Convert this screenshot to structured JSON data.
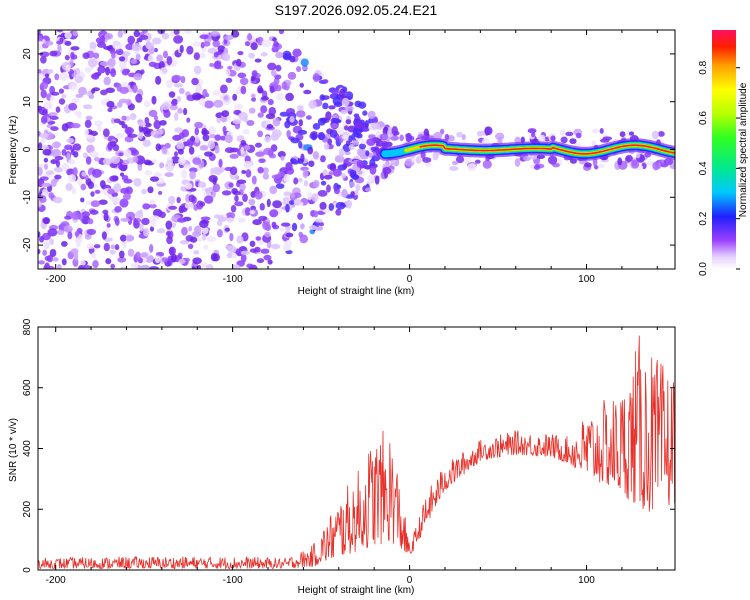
{
  "chart_data": [
    {
      "type": "heatmap",
      "title": "S197.2026.092.05.24.E21",
      "xlabel": "Height of straight line (km)",
      "ylabel": "Frequency (Hz)",
      "xlim": [
        -210,
        150
      ],
      "ylim": [
        -25,
        25
      ],
      "xticks": [
        -200,
        -100,
        0,
        100
      ],
      "yticks": [
        -20,
        -10,
        0,
        10,
        20
      ],
      "colorbar": {
        "label": "Normalized spectral amplitude",
        "range": [
          0,
          0.95
        ],
        "ticks": [
          0.0,
          0.2,
          0.4,
          0.6,
          0.8
        ]
      },
      "description_segments": [
        {
          "x_range": [
            -210,
            -70
          ],
          "character": "noise",
          "amplitude_max": 0.3
        },
        {
          "x_range": [
            -70,
            -10
          ],
          "character": "transition",
          "amplitude_max": 0.4
        },
        {
          "x_range": [
            -10,
            150
          ],
          "character": "coherent band near 0 Hz",
          "amplitude_max": 0.95
        }
      ]
    },
    {
      "type": "line",
      "xlabel": "Height of straight line (km)",
      "ylabel": "SNR (10 * v/v)",
      "xlim": [
        -210,
        150
      ],
      "ylim": [
        0,
        800
      ],
      "xticks": [
        -200,
        -100,
        0,
        100
      ],
      "yticks": [
        0,
        200,
        400,
        600,
        800
      ],
      "series": [
        {
          "name": "SNR",
          "color": "#e8302a",
          "envelope": {
            "x": [
              -210,
              -150,
              -100,
              -70,
              -55,
              -40,
              -30,
              -20,
              -10,
              0,
              10,
              20,
              40,
              60,
              80,
              90,
              100,
              110,
              120,
              130,
              140,
              150
            ],
            "low": [
              5,
              5,
              5,
              5,
              10,
              40,
              60,
              80,
              90,
              40,
              150,
              260,
              360,
              380,
              370,
              350,
              300,
              280,
              250,
              200,
              180,
              220
            ],
            "high": [
              40,
              45,
              45,
              40,
              80,
              240,
              320,
              450,
              470,
              80,
              260,
              350,
              430,
              460,
              450,
              440,
              520,
              560,
              600,
              780,
              700,
              660
            ]
          }
        }
      ]
    }
  ]
}
